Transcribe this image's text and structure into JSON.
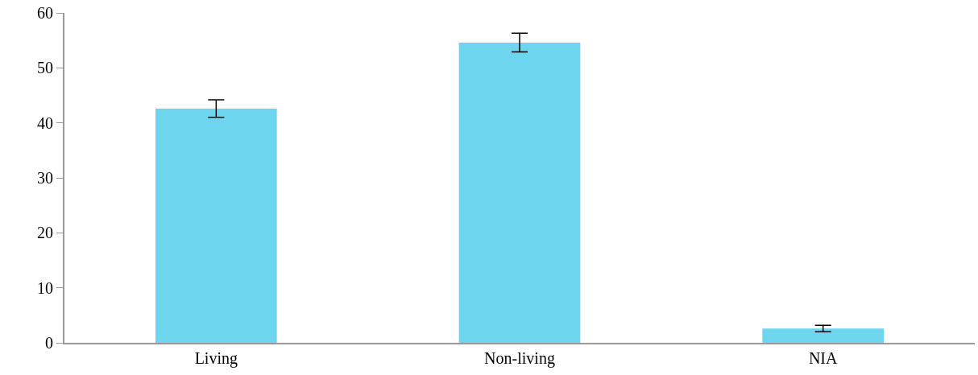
{
  "chart_data": {
    "type": "bar",
    "categories": [
      "Living",
      "Non-living",
      "NIA"
    ],
    "values": [
      42.6,
      54.6,
      2.6
    ],
    "errors": [
      1.6,
      1.7,
      0.6
    ],
    "color": "#6dd6ee",
    "ylim": [
      0,
      60
    ],
    "yticks": [
      0,
      10,
      20,
      30,
      40,
      50,
      60
    ],
    "legend": false
  }
}
